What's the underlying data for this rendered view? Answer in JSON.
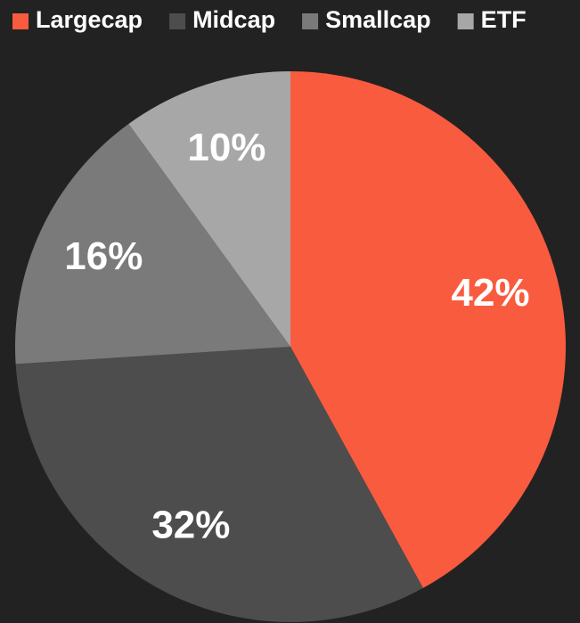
{
  "chart_data": {
    "type": "pie",
    "categories": [
      "Largecap",
      "Midcap",
      "Smallcap",
      "ETF"
    ],
    "values": [
      42,
      32,
      16,
      10
    ],
    "value_labels": [
      "42%",
      "32%",
      "16%",
      "10%"
    ],
    "colors": [
      "#f95b3f",
      "#4d4d4d",
      "#7a7a7a",
      "#a7a7a7"
    ],
    "legend": "top"
  }
}
